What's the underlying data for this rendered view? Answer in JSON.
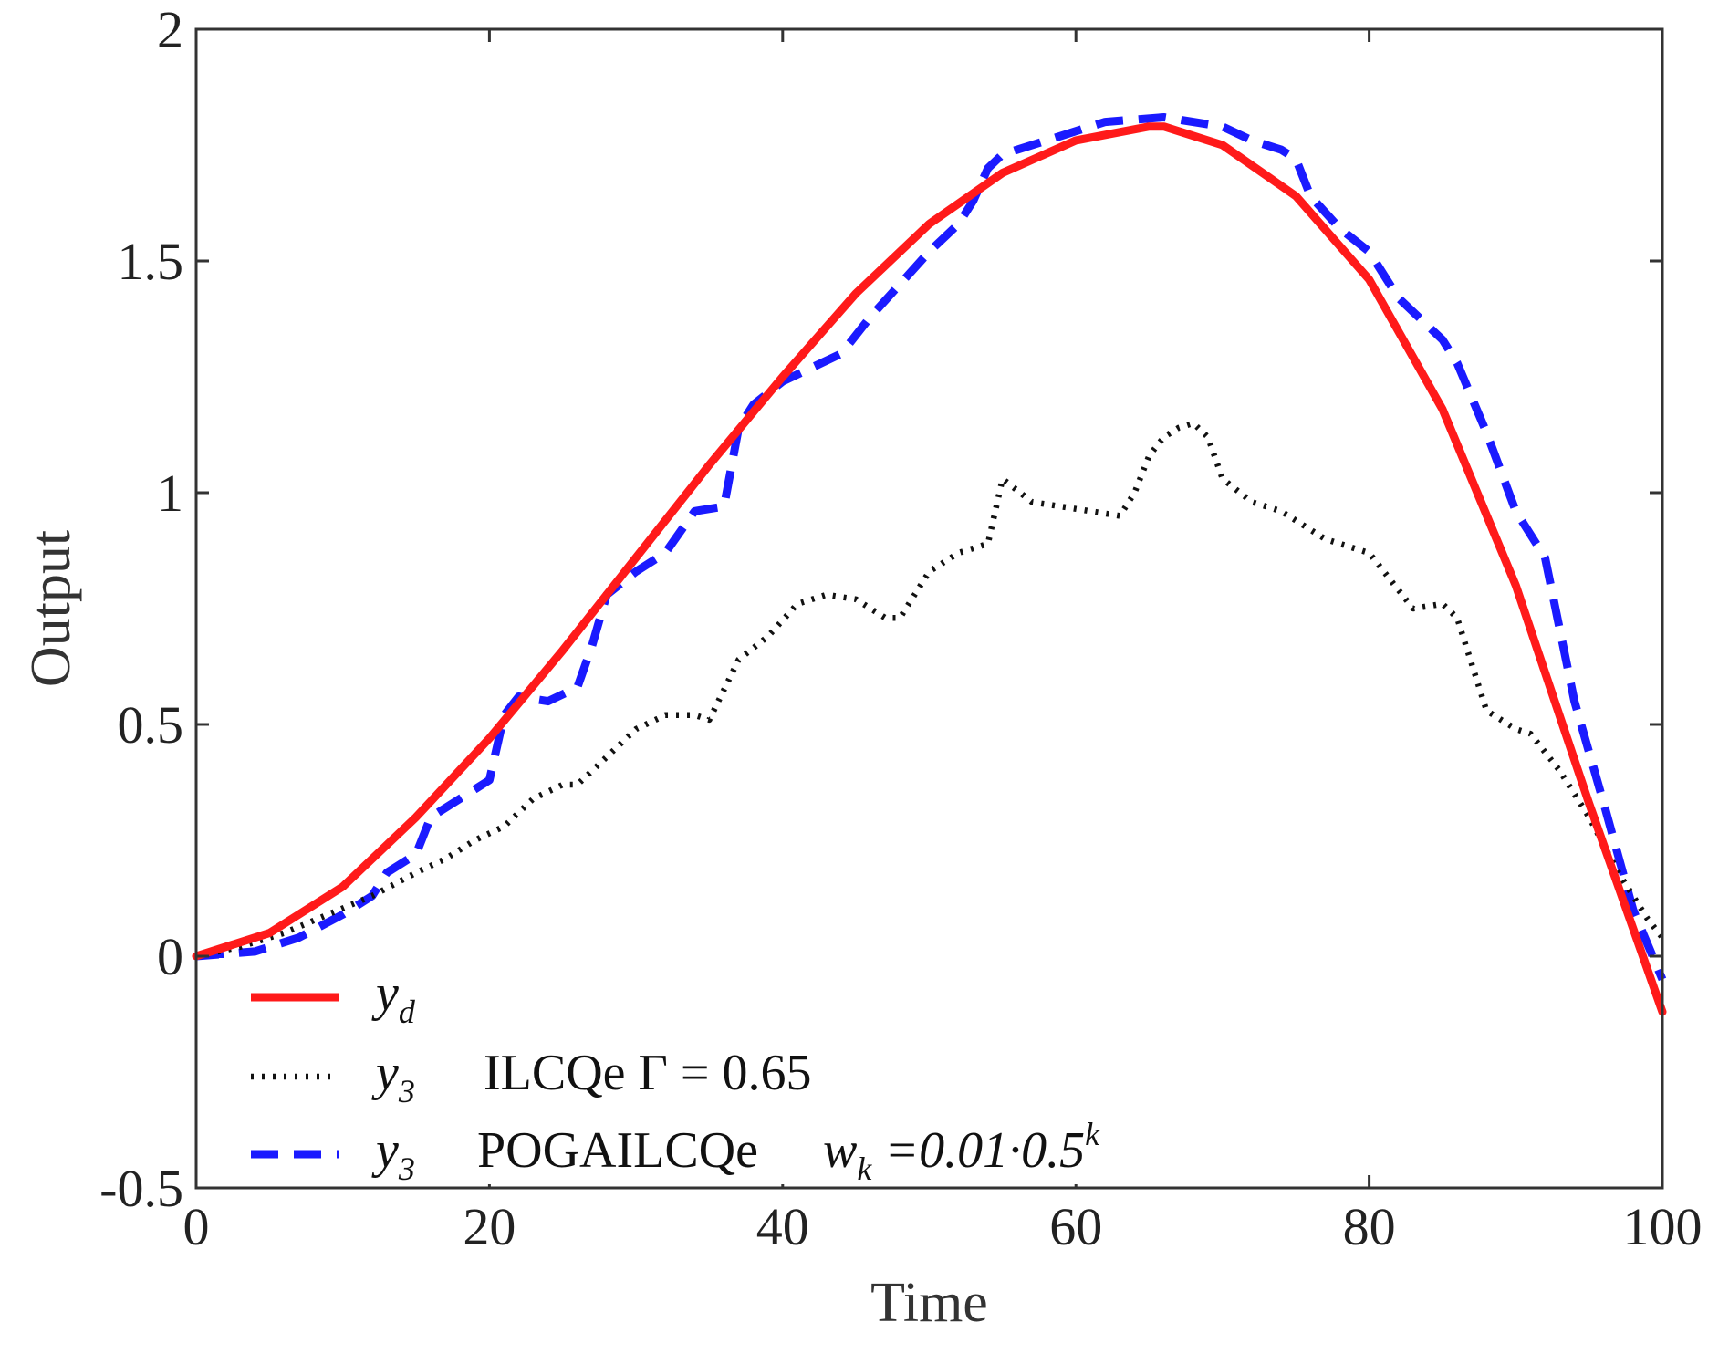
{
  "chart_data": {
    "type": "line",
    "title": "",
    "xlabel": "Time",
    "ylabel": "Output",
    "xlim": [
      0,
      100
    ],
    "ylim": [
      -0.5,
      2
    ],
    "grid": false,
    "legend_position": "bottom-left",
    "x_ticks": [
      0,
      20,
      40,
      60,
      80,
      100
    ],
    "x_tick_labels": [
      "0",
      "20",
      "40",
      "60",
      "80",
      "100"
    ],
    "y_ticks": [
      -0.5,
      0,
      0.5,
      1,
      1.5,
      2
    ],
    "y_tick_labels": [
      "-0.5",
      "0",
      "0.5",
      "1",
      "1.5",
      "2"
    ],
    "series": [
      {
        "name": "y_d",
        "legend": {
          "var": "y",
          "sub": "d",
          "text": ""
        },
        "color": "#ff1a1a",
        "style": "solid",
        "x": [
          0,
          5,
          10,
          15,
          20,
          25,
          30,
          35,
          40,
          45,
          50,
          55,
          60,
          65,
          66,
          70,
          75,
          80,
          85,
          90,
          95,
          100
        ],
        "y": [
          0,
          0.05,
          0.15,
          0.3,
          0.47,
          0.66,
          0.86,
          1.06,
          1.25,
          1.43,
          1.58,
          1.69,
          1.76,
          1.79,
          1.79,
          1.75,
          1.64,
          1.46,
          1.18,
          0.8,
          0.33,
          -0.12
        ]
      },
      {
        "name": "y3 ILCQe",
        "legend": {
          "var": "y",
          "sub": "3",
          "text": "ILCQe   Γ = 0.65"
        },
        "color": "#111111",
        "style": "dotted",
        "x": [
          0,
          3,
          6,
          9,
          12,
          15,
          17,
          19,
          21,
          23,
          25,
          26,
          28,
          30,
          32,
          34,
          35,
          37,
          39,
          41,
          43,
          45,
          47,
          48,
          50,
          52,
          54,
          55,
          57,
          59,
          61,
          63,
          64,
          65,
          66,
          67,
          68,
          69,
          70,
          72,
          74,
          75,
          77,
          79,
          80,
          81,
          83,
          85,
          86,
          87,
          88,
          90,
          91,
          93,
          95,
          97,
          99,
          100
        ],
        "y": [
          0,
          0.02,
          0.05,
          0.09,
          0.13,
          0.18,
          0.21,
          0.25,
          0.28,
          0.34,
          0.37,
          0.37,
          0.43,
          0.49,
          0.52,
          0.52,
          0.51,
          0.64,
          0.69,
          0.76,
          0.78,
          0.77,
          0.73,
          0.73,
          0.83,
          0.87,
          0.89,
          1.03,
          0.98,
          0.97,
          0.96,
          0.95,
          1.0,
          1.08,
          1.12,
          1.14,
          1.15,
          1.12,
          1.03,
          0.98,
          0.96,
          0.94,
          0.9,
          0.88,
          0.87,
          0.83,
          0.75,
          0.76,
          0.73,
          0.63,
          0.53,
          0.49,
          0.48,
          0.4,
          0.3,
          0.18,
          0.08,
          0.04
        ]
      },
      {
        "name": "y3 POGAILCQe",
        "legend": {
          "var": "y",
          "sub": "3",
          "text": "POGAILCQe",
          "extra": "w_k = 0.01·0.5^k"
        },
        "color": "#1a1aff",
        "style": "dashed",
        "x": [
          0,
          4,
          7,
          10,
          12,
          13,
          15,
          16,
          18,
          20,
          21,
          22,
          24,
          26,
          27,
          28,
          30,
          32,
          34,
          36,
          37,
          38,
          40,
          42,
          44,
          46,
          48,
          50,
          52,
          53,
          54,
          55,
          58,
          62,
          66,
          70,
          72,
          74,
          75,
          76,
          78,
          80,
          82,
          84,
          85,
          86,
          88,
          90,
          92,
          94,
          96,
          98,
          100
        ],
        "y": [
          0,
          0.01,
          0.04,
          0.09,
          0.13,
          0.18,
          0.22,
          0.3,
          0.34,
          0.38,
          0.52,
          0.56,
          0.55,
          0.58,
          0.67,
          0.78,
          0.83,
          0.87,
          0.96,
          0.97,
          1.14,
          1.19,
          1.24,
          1.27,
          1.3,
          1.38,
          1.45,
          1.52,
          1.58,
          1.63,
          1.7,
          1.73,
          1.76,
          1.8,
          1.81,
          1.79,
          1.76,
          1.74,
          1.72,
          1.64,
          1.57,
          1.52,
          1.42,
          1.36,
          1.33,
          1.28,
          1.13,
          0.96,
          0.86,
          0.55,
          0.33,
          0.1,
          -0.05
        ]
      }
    ]
  }
}
